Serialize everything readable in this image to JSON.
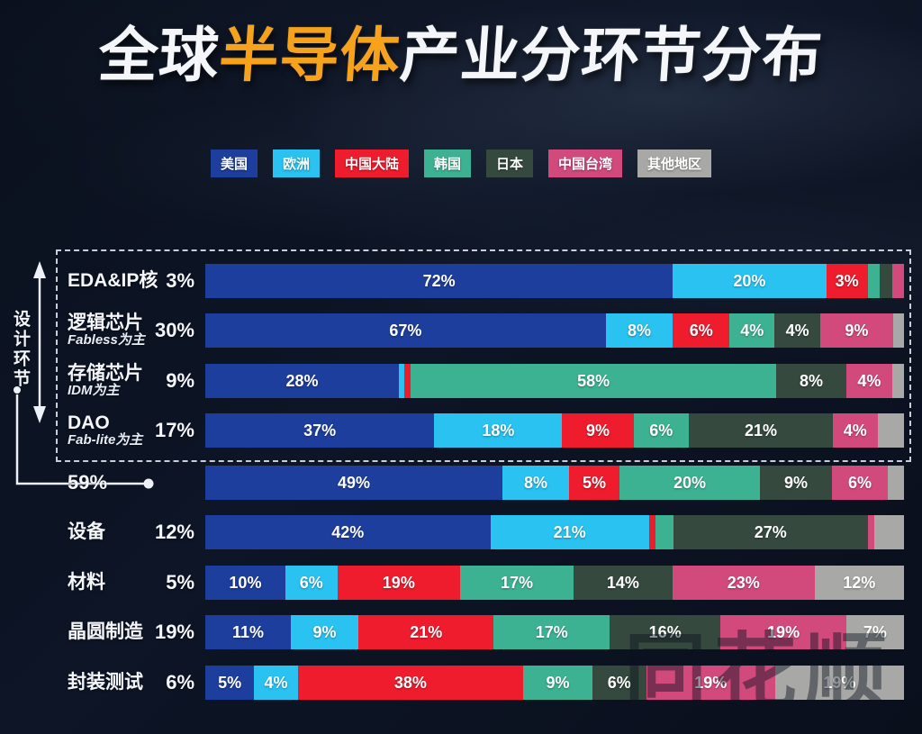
{
  "title": {
    "prefix": "全球",
    "highlight": "半导体",
    "suffix": "产业分环节分布"
  },
  "design_section_label": "设计环节",
  "watermark": "同花顺",
  "legend": [
    {
      "label": "美国",
      "color": "#1e3e9e"
    },
    {
      "label": "欧洲",
      "color": "#29c2f1"
    },
    {
      "label": "中国大陆",
      "color": "#ee1c2d"
    },
    {
      "label": "韩国",
      "color": "#3db293"
    },
    {
      "label": "日本",
      "color": "#35493e"
    },
    {
      "label": "中国台湾",
      "color": "#d24a7c"
    },
    {
      "label": "其他地区",
      "color": "#a8a8a6"
    }
  ],
  "chart_data": {
    "type": "bar",
    "orientation": "horizontal-stacked",
    "unit": "%",
    "title": "全球半导体产业分环节分布",
    "series_names": [
      "美国",
      "欧洲",
      "中国大陆",
      "韩国",
      "日本",
      "中国台湾",
      "其他地区"
    ],
    "rows": [
      {
        "name": "EDA&IP核",
        "sub": "",
        "share": "3%",
        "in_design_box": true,
        "segments": [
          {
            "series": "美国",
            "value": 72,
            "label": "72%"
          },
          {
            "series": "欧洲",
            "value": 20,
            "label": "20%"
          },
          {
            "series": "中国大陆",
            "value": 3,
            "label": "3%"
          },
          {
            "series": "韩国",
            "value": 2,
            "label": ""
          },
          {
            "series": "日本",
            "value": 2,
            "label": ""
          },
          {
            "series": "中国台湾",
            "value": 2,
            "label": ""
          }
        ]
      },
      {
        "name": "逻辑芯片",
        "sub": "Fabless为主",
        "share": "30%",
        "in_design_box": true,
        "segments": [
          {
            "series": "美国",
            "value": 67,
            "label": "67%"
          },
          {
            "series": "欧洲",
            "value": 8,
            "label": "8%"
          },
          {
            "series": "中国大陆",
            "value": 6,
            "label": "6%"
          },
          {
            "series": "韩国",
            "value": 4,
            "label": "4%"
          },
          {
            "series": "日本",
            "value": 4,
            "label": "4%"
          },
          {
            "series": "中国台湾",
            "value": 9,
            "label": "9%"
          },
          {
            "series": "其他地区",
            "value": 2,
            "label": ""
          }
        ]
      },
      {
        "name": "存储芯片",
        "sub": "IDM为主",
        "share": "9%",
        "in_design_box": true,
        "segments": [
          {
            "series": "美国",
            "value": 28,
            "label": "28%"
          },
          {
            "series": "欧洲",
            "value": 1,
            "label": ""
          },
          {
            "series": "中国大陆",
            "value": 1,
            "label": ""
          },
          {
            "series": "韩国",
            "value": 58,
            "label": "58%"
          },
          {
            "series": "日本",
            "value": 8,
            "label": "8%"
          },
          {
            "series": "中国台湾",
            "value": 4,
            "label": "4%"
          },
          {
            "series": "其他地区",
            "value": 2,
            "label": ""
          }
        ]
      },
      {
        "name": "DAO",
        "sub": "Fab-lite为主",
        "share": "17%",
        "in_design_box": true,
        "segments": [
          {
            "series": "美国",
            "value": 37,
            "label": "37%"
          },
          {
            "series": "欧洲",
            "value": 18,
            "label": "18%"
          },
          {
            "series": "中国大陆",
            "value": 9,
            "label": "9%"
          },
          {
            "series": "韩国",
            "value": 6,
            "label": "6%"
          },
          {
            "series": "日本",
            "value": 21,
            "label": "21%"
          },
          {
            "series": "中国台湾",
            "value": 4,
            "label": "4%"
          },
          {
            "series": "其他地区",
            "value": 5,
            "label": ""
          }
        ]
      },
      {
        "name": "",
        "sub": "",
        "share": "59%",
        "in_design_box": false,
        "is_design_total": true,
        "segments": [
          {
            "series": "美国",
            "value": 49,
            "label": "49%"
          },
          {
            "series": "欧洲",
            "value": 8,
            "label": "8%"
          },
          {
            "series": "中国大陆",
            "value": 5,
            "label": "5%"
          },
          {
            "series": "韩国",
            "value": 20,
            "label": "20%"
          },
          {
            "series": "日本",
            "value": 9,
            "label": "9%"
          },
          {
            "series": "中国台湾",
            "value": 6,
            "label": "6%"
          },
          {
            "series": "其他地区",
            "value": 3,
            "label": ""
          }
        ]
      },
      {
        "name": "设备",
        "sub": "",
        "share": "12%",
        "in_design_box": false,
        "segments": [
          {
            "series": "美国",
            "value": 42,
            "label": "42%"
          },
          {
            "series": "欧洲",
            "value": 21,
            "label": "21%"
          },
          {
            "series": "中国大陆",
            "value": 1,
            "label": ""
          },
          {
            "series": "韩国",
            "value": 3,
            "label": ""
          },
          {
            "series": "日本",
            "value": 27,
            "label": "27%"
          },
          {
            "series": "中国台湾",
            "value": 1,
            "label": ""
          },
          {
            "series": "其他地区",
            "value": 5,
            "label": ""
          }
        ]
      },
      {
        "name": "材料",
        "sub": "",
        "share": "5%",
        "in_design_box": false,
        "segments": [
          {
            "series": "美国",
            "value": 10,
            "label": "10%"
          },
          {
            "series": "欧洲",
            "value": 6,
            "label": "6%"
          },
          {
            "series": "中国大陆",
            "value": 19,
            "label": "19%"
          },
          {
            "series": "韩国",
            "value": 17,
            "label": "17%"
          },
          {
            "series": "日本",
            "value": 14,
            "label": "14%"
          },
          {
            "series": "中国台湾",
            "value": 23,
            "label": "23%"
          },
          {
            "series": "其他地区",
            "value": 12,
            "label": "12%"
          }
        ]
      },
      {
        "name": "晶圆制造",
        "sub": "",
        "share": "19%",
        "in_design_box": false,
        "segments": [
          {
            "series": "美国",
            "value": 11,
            "label": "11%"
          },
          {
            "series": "欧洲",
            "value": 9,
            "label": "9%"
          },
          {
            "series": "中国大陆",
            "value": 21,
            "label": "21%"
          },
          {
            "series": "韩国",
            "value": 17,
            "label": "17%"
          },
          {
            "series": "日本",
            "value": 16,
            "label": "16%"
          },
          {
            "series": "中国台湾",
            "value": 19,
            "label": "19%"
          },
          {
            "series": "其他地区",
            "value": 7,
            "label": "7%"
          }
        ]
      },
      {
        "name": "封装测试",
        "sub": "",
        "share": "6%",
        "in_design_box": false,
        "segments": [
          {
            "series": "美国",
            "value": 5,
            "label": "5%"
          },
          {
            "series": "欧洲",
            "value": 4,
            "label": "4%"
          },
          {
            "series": "中国大陆",
            "value": 38,
            "label": "38%"
          },
          {
            "series": "韩国",
            "value": 9,
            "label": "9%"
          },
          {
            "series": "日本",
            "value": 6,
            "label": "6%"
          },
          {
            "series": "中国台湾",
            "value": 19,
            "label": "19%"
          },
          {
            "series": "其他地区",
            "value": 19,
            "label": "19%"
          }
        ]
      }
    ]
  }
}
